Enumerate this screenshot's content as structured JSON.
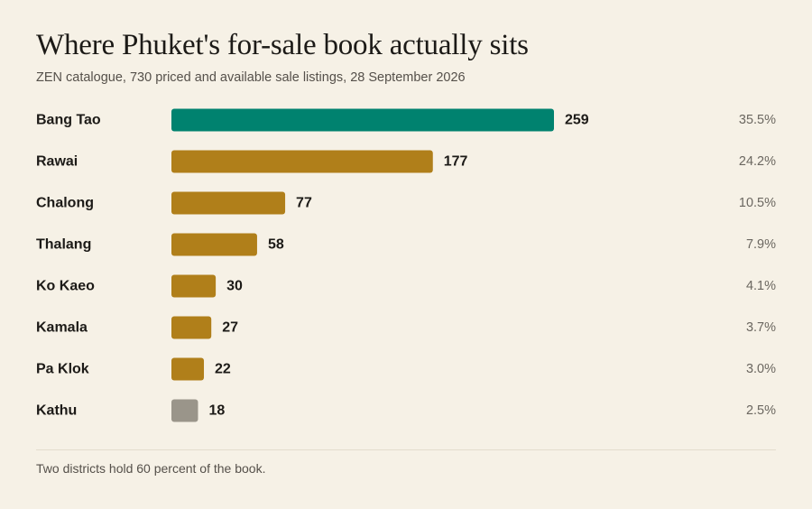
{
  "title": "Where Phuket's for-sale book actually sits",
  "subtitle": "ZEN catalogue, 730 priced and available sale listings, 28 September 2026",
  "note": "Two districts hold 60 percent of the book.",
  "colors": {
    "background": "#f6f1e6",
    "highlight": "#00826f",
    "default": "#b07f1a",
    "muted": "#9a958a"
  },
  "chart_data": {
    "type": "bar",
    "orientation": "horizontal",
    "categories": [
      "Bang Tao",
      "Rawai",
      "Chalong",
      "Thalang",
      "Ko Kaeo",
      "Kamala",
      "Pa Klok",
      "Kathu"
    ],
    "values": [
      259,
      177,
      77,
      58,
      30,
      27,
      22,
      18
    ],
    "value_labels": [
      "259",
      "177",
      "77",
      "58",
      "30",
      "27",
      "22",
      "18"
    ],
    "share_labels": [
      "35.5%",
      "24.2%",
      "10.5%",
      "7.9%",
      "4.1%",
      "3.7%",
      "3.0%",
      "2.5%"
    ],
    "bar_colors": [
      "#00826f",
      "#b07f1a",
      "#b07f1a",
      "#b07f1a",
      "#b07f1a",
      "#b07f1a",
      "#b07f1a",
      "#9a958a"
    ],
    "xlim": [
      0,
      259
    ],
    "grid": false,
    "legend": false
  }
}
